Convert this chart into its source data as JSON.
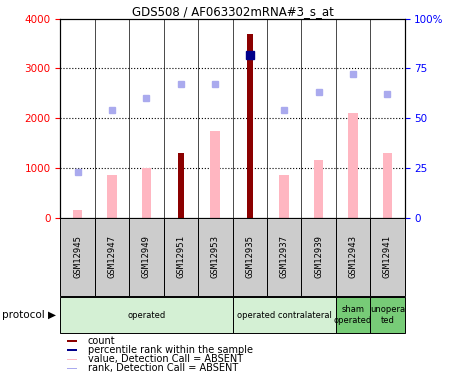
{
  "title": "GDS508 / AF063302mRNA#3_s_at",
  "samples": [
    "GSM12945",
    "GSM12947",
    "GSM12949",
    "GSM12951",
    "GSM12953",
    "GSM12935",
    "GSM12937",
    "GSM12939",
    "GSM12943",
    "GSM12941"
  ],
  "count_values": [
    null,
    null,
    null,
    1300,
    null,
    3700,
    null,
    null,
    null,
    null
  ],
  "percentile_values": [
    null,
    null,
    null,
    null,
    null,
    82,
    null,
    null,
    null,
    null
  ],
  "pink_bar_values": [
    150,
    850,
    1000,
    null,
    1750,
    null,
    850,
    1150,
    2100,
    1300
  ],
  "blue_sq_values": [
    23,
    54,
    60,
    67,
    67,
    null,
    54,
    63,
    72,
    62
  ],
  "protocols": [
    {
      "label": "operated",
      "span": [
        0,
        5
      ],
      "color": "#d4f0d4"
    },
    {
      "label": "operated contralateral",
      "span": [
        5,
        8
      ],
      "color": "#d4f0d4"
    },
    {
      "label": "sham\noperated",
      "span": [
        8,
        9
      ],
      "color": "#77cc77"
    },
    {
      "label": "unopera\nted",
      "span": [
        9,
        10
      ],
      "color": "#77cc77"
    }
  ],
  "ylim_left": [
    0,
    4000
  ],
  "ylim_right": [
    0,
    100
  ],
  "yticks_left": [
    0,
    1000,
    2000,
    3000,
    4000
  ],
  "ytick_labels_right": [
    "0",
    "25",
    "50",
    "75",
    "100"
  ],
  "dark_red": "#8B0000",
  "pink": "#FFB6C1",
  "dark_blue": "#00008B",
  "light_blue": "#aaaaee",
  "bg_color": "#ffffff",
  "sample_box_color": "#cccccc",
  "bar_width": 0.28
}
